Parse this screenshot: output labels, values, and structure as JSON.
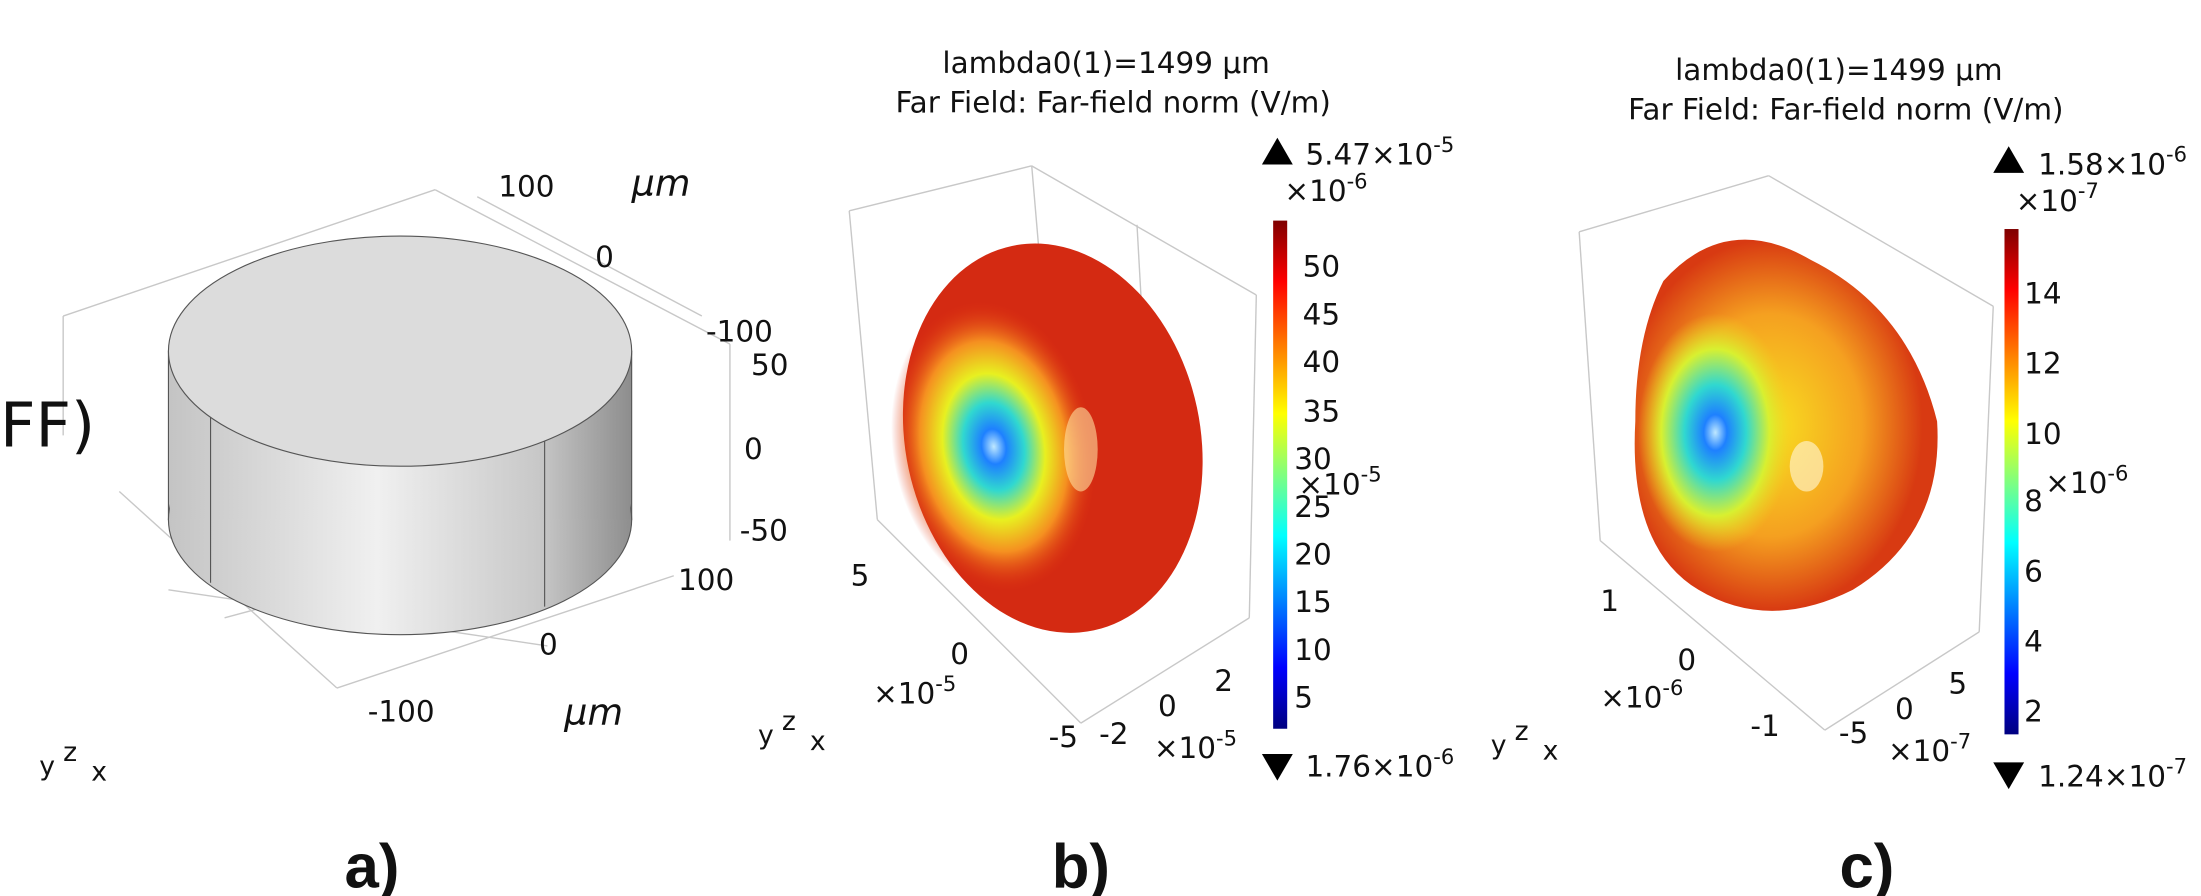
{
  "panel_a": {
    "label": "a)",
    "cut_text": "FF)",
    "axis_labels": [
      "100",
      "μm",
      "0",
      "-100",
      "50",
      "0",
      "-50",
      "100",
      "0",
      "-100",
      "μm"
    ],
    "triad": [
      "y",
      "z",
      "x"
    ]
  },
  "panel_b": {
    "label": "b)",
    "title": [
      "lambda0(1)=1499 μm",
      "Far Field: Far-field norm (V/m)"
    ],
    "max": {
      "base": "5.47×10",
      "exp": "-5"
    },
    "colorbar_scale": {
      "base": "×10",
      "exp": "-6"
    },
    "colorbar_ticks": [
      "50",
      "45",
      "40",
      "35",
      "30",
      "25",
      "20",
      "15",
      "10",
      "5"
    ],
    "min": {
      "base": "1.76×10",
      "exp": "-6"
    },
    "axis_labels": [
      "5",
      "0",
      "-5",
      "-2",
      "0",
      "2"
    ],
    "axis_scales": [
      {
        "base": "×10",
        "exp": "-5"
      },
      {
        "base": "×10",
        "exp": "-5"
      },
      {
        "base": "×10",
        "exp": "-5"
      }
    ],
    "triad": [
      "y",
      "z",
      "x"
    ]
  },
  "panel_c": {
    "label": "c)",
    "title": [
      "lambda0(1)=1499 μm",
      "Far Field: Far-field norm (V/m)"
    ],
    "max": {
      "base": "1.58×10",
      "exp": "-6"
    },
    "colorbar_scale": {
      "base": "×10",
      "exp": "-7"
    },
    "colorbar_ticks": [
      "14",
      "12",
      "10",
      "8",
      "6",
      "4",
      "2"
    ],
    "min": {
      "base": "1.24×10",
      "exp": "-7"
    },
    "axis_labels": [
      "1",
      "0",
      "-1",
      "-5",
      "0",
      "5"
    ],
    "axis_scales": [
      {
        "base": "×10",
        "exp": "-6"
      },
      {
        "base": "×10",
        "exp": "-6"
      },
      {
        "base": "×10",
        "exp": "-7"
      }
    ],
    "triad": [
      "y",
      "z",
      "x"
    ]
  }
}
